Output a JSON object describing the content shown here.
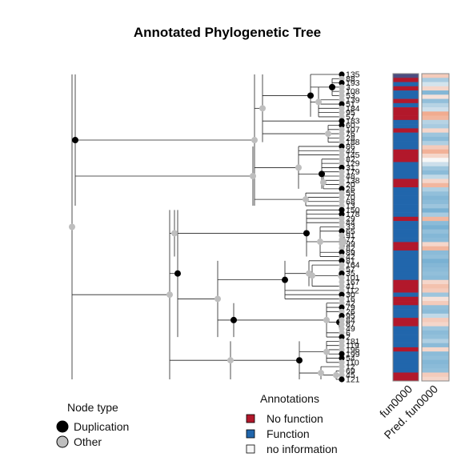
{
  "figure": {
    "title": "Annotated Phylogenetic Tree"
  },
  "colors": {
    "no_function": "#b2182b",
    "function": "#2166ac",
    "no_information": "#f7f7f7",
    "duplication_node": "#000000",
    "other_node": "#bebebe",
    "branch": "#222222",
    "panel_border": "#888888"
  },
  "tips": [
    "135",
    "88",
    "193",
    "3",
    "108",
    "53",
    "139",
    "51",
    "184",
    "95",
    "57",
    "183",
    "60",
    "107",
    "76",
    "28",
    "188",
    "86",
    "44",
    "145",
    "82",
    "129",
    "31",
    "179",
    "48",
    "138",
    "20",
    "26",
    "55",
    "70",
    "68",
    "13",
    "150",
    "178",
    "29",
    "44",
    "33",
    "65",
    "91",
    "77",
    "99",
    "82",
    "89",
    "42",
    "81",
    "164",
    "57",
    "35",
    "101",
    "167",
    "41",
    "112",
    "30",
    "16",
    "42",
    "79",
    "26",
    "95",
    "84",
    "87",
    "49",
    "6",
    "2",
    "181",
    "119",
    "196",
    "199",
    "54",
    "110",
    "12",
    "69",
    "45",
    "121"
  ],
  "tree": {
    "type": "phylogram",
    "nodes": [
      {
        "type": "Other"
      },
      {
        "type": "Other"
      },
      {
        "type": "Duplication"
      },
      {
        "type": "Other"
      },
      {
        "type": "Duplication"
      },
      {
        "type": "Other"
      },
      {
        "type": "Other"
      },
      {
        "type": "Other"
      },
      {
        "type": "Duplication"
      },
      {
        "type": "Other"
      },
      {
        "type": "Other"
      },
      {
        "type": "Duplication"
      },
      {
        "type": "Other"
      },
      {
        "type": "Other"
      },
      {
        "type": "Duplication"
      },
      {
        "type": "Other"
      },
      {
        "type": "Duplication"
      },
      {
        "type": "Other"
      },
      {
        "type": "Other"
      },
      {
        "type": "Duplication"
      },
      {
        "type": "Other"
      },
      {
        "type": "Other"
      },
      {
        "type": "Duplication"
      },
      {
        "type": "Other"
      },
      {
        "type": "Other"
      },
      {
        "type": "Other"
      },
      {
        "type": "Duplication"
      },
      {
        "type": "Other"
      },
      {
        "type": "Other"
      },
      {
        "type": "Other"
      },
      {
        "type": "Duplication"
      },
      {
        "type": "Other"
      }
    ]
  },
  "columns": [
    {
      "label": "fun0000",
      "kind": "categorical",
      "values": [
        "x",
        "n",
        "f",
        "n",
        "f",
        "f",
        "n",
        "f",
        "n",
        "n",
        "n",
        "f",
        "f",
        "n",
        "f",
        "f",
        "f",
        "f",
        "n",
        "n",
        "n",
        "f",
        "f",
        "f",
        "f",
        "n",
        "n",
        "f",
        "f",
        "f",
        "f",
        "f",
        "f",
        "f",
        "n",
        "f",
        "f",
        "f",
        "f",
        "f",
        "n",
        "n",
        "f",
        "f",
        "f",
        "f",
        "f",
        "f",
        "f",
        "n",
        "n",
        "n",
        "f",
        "n",
        "n",
        "f",
        "f",
        "f",
        "n",
        "n",
        "f",
        "f",
        "f",
        "f",
        "f",
        "n",
        "f",
        "f",
        "f",
        "f",
        "f",
        "n",
        "n"
      ]
    },
    {
      "label": "Pred. fun0000",
      "kind": "probability",
      "values": [
        0.3,
        0.72,
        0.6,
        0.35,
        0.82,
        0.4,
        0.78,
        0.68,
        0.62,
        0.15,
        0.2,
        0.68,
        0.72,
        0.35,
        0.75,
        0.8,
        0.7,
        0.3,
        0.18,
        0.35,
        0.5,
        0.62,
        0.75,
        0.8,
        0.65,
        0.35,
        0.2,
        0.7,
        0.78,
        0.82,
        0.8,
        0.75,
        0.85,
        0.72,
        0.2,
        0.8,
        0.85,
        0.78,
        0.82,
        0.8,
        0.35,
        0.2,
        0.8,
        0.78,
        0.85,
        0.82,
        0.8,
        0.78,
        0.8,
        0.35,
        0.25,
        0.3,
        0.75,
        0.4,
        0.3,
        0.78,
        0.8,
        0.65,
        0.3,
        0.35,
        0.75,
        0.8,
        0.78,
        0.7,
        0.8,
        0.35,
        0.8,
        0.78,
        0.82,
        0.8,
        0.78,
        0.3,
        0.35
      ]
    }
  ],
  "legend_node": {
    "title": "Node type",
    "items": [
      {
        "label": "Duplication",
        "type": "Duplication"
      },
      {
        "label": "Other",
        "type": "Other"
      }
    ]
  },
  "legend_annotations": {
    "title": "Annotations",
    "items": [
      {
        "label": "No function",
        "key": "no_function"
      },
      {
        "label": "Function",
        "key": "function"
      },
      {
        "label": "no information",
        "key": "no_information"
      }
    ]
  }
}
